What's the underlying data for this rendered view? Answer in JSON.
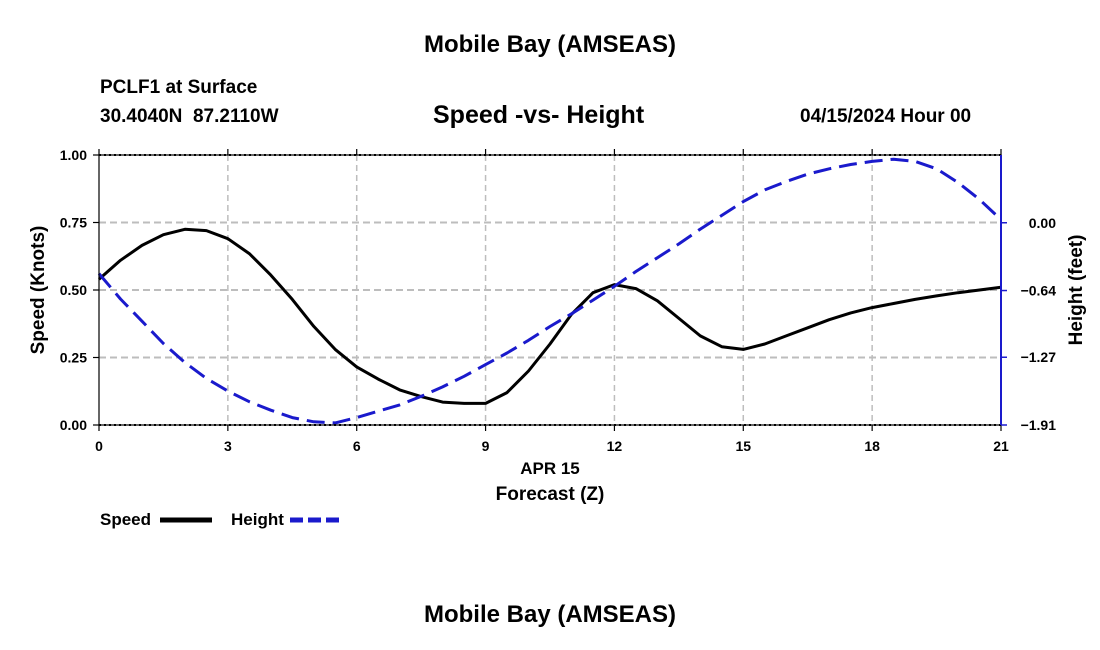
{
  "header": {
    "title": "Mobile Bay (AMSEAS)",
    "station": "PCLF1 at Surface",
    "coords": "30.4040N  87.2110W",
    "subtitle": "Speed -vs- Height",
    "datetime": "04/15/2024 Hour 00"
  },
  "footer": {
    "title": "Mobile Bay (AMSEAS)"
  },
  "chart_data": {
    "type": "line",
    "title": "Speed -vs- Height",
    "xlabel": "Forecast (Z)",
    "xlabel_date": "APR 15",
    "ylabel": "Speed (Knots)",
    "y2label": "Height (feet)",
    "xlim": [
      0,
      21
    ],
    "ylim": [
      0,
      1
    ],
    "y2lim": [
      -1.91,
      0.64
    ],
    "x_ticks": [
      0,
      3,
      6,
      9,
      12,
      15,
      18,
      21
    ],
    "y_ticks": [
      "0.00",
      "0.25",
      "0.50",
      "0.75",
      "1.00"
    ],
    "y2_ticks": [
      "0.00",
      "-0.64",
      "-1.27",
      "-1.91"
    ],
    "grid": true,
    "legend": "bottom-left",
    "colors": {
      "speed": "#000000",
      "height": "#1a1acc"
    },
    "series": [
      {
        "name": "Speed",
        "axis": "left",
        "x": [
          0,
          0.5,
          1,
          1.5,
          2,
          2.5,
          3,
          3.5,
          4,
          4.5,
          5,
          5.5,
          6,
          6.5,
          7,
          7.5,
          8,
          8.5,
          9,
          9.5,
          10,
          10.5,
          11,
          11.5,
          12,
          12.5,
          13,
          13.5,
          14,
          14.5,
          15,
          15.5,
          16,
          16.5,
          17,
          17.5,
          18,
          18.5,
          19,
          19.5,
          20,
          20.5,
          21
        ],
        "values": [
          0.54,
          0.61,
          0.665,
          0.705,
          0.725,
          0.72,
          0.69,
          0.635,
          0.555,
          0.465,
          0.365,
          0.28,
          0.215,
          0.17,
          0.13,
          0.105,
          0.085,
          0.08,
          0.08,
          0.12,
          0.2,
          0.3,
          0.41,
          0.49,
          0.52,
          0.505,
          0.46,
          0.395,
          0.33,
          0.29,
          0.28,
          0.3,
          0.33,
          0.36,
          0.39,
          0.415,
          0.435,
          0.45,
          0.465,
          0.478,
          0.49,
          0.5,
          0.51
        ]
      },
      {
        "name": "Height",
        "axis": "right",
        "x": [
          0,
          0.5,
          1,
          1.5,
          2,
          2.5,
          3,
          3.5,
          4,
          4.5,
          5,
          5.5,
          6,
          6.5,
          7,
          7.5,
          8,
          8.5,
          9,
          9.5,
          10,
          10.5,
          11,
          11.5,
          12,
          12.5,
          13,
          13.5,
          14,
          14.5,
          15,
          15.5,
          16,
          16.5,
          17,
          17.5,
          18,
          18.5,
          19,
          19.5,
          20,
          20.5,
          21
        ],
        "values": [
          -0.48,
          -0.72,
          -0.93,
          -1.14,
          -1.32,
          -1.47,
          -1.59,
          -1.69,
          -1.77,
          -1.84,
          -1.88,
          -1.89,
          -1.84,
          -1.78,
          -1.72,
          -1.64,
          -1.55,
          -1.45,
          -1.34,
          -1.23,
          -1.11,
          -0.98,
          -0.86,
          -0.73,
          -0.6,
          -0.46,
          -0.33,
          -0.2,
          -0.06,
          0.07,
          0.2,
          0.31,
          0.39,
          0.46,
          0.51,
          0.55,
          0.58,
          0.6,
          0.58,
          0.51,
          0.38,
          0.22,
          0.03
        ]
      }
    ]
  }
}
